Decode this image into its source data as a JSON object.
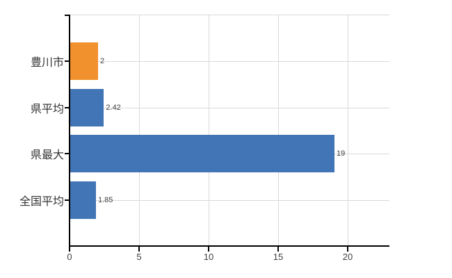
{
  "chart_data": {
    "type": "bar",
    "orientation": "horizontal",
    "title": "",
    "categories": [
      "豊川市",
      "県平均",
      "県最大",
      "全国平均"
    ],
    "values": [
      2,
      2.42,
      19,
      1.85
    ],
    "value_labels": [
      "2",
      "2.42",
      "19",
      "1.85"
    ],
    "bar_colors": [
      "#f0912d",
      "#4175b5",
      "#4175b5",
      "#4175b5"
    ],
    "x_ticks": [
      0,
      5,
      10,
      15,
      20
    ],
    "x_tick_labels": [
      "0",
      "5",
      "10",
      "15",
      "20"
    ],
    "xlim": [
      0,
      23
    ],
    "xlabel": "",
    "ylabel": "",
    "grid": true,
    "legend": false,
    "colors": {
      "background": "#ffffff",
      "grid": "#d9d9d9",
      "axis": "#000000",
      "text": "#404040",
      "bar_blue": "#4175b5",
      "bar_orange": "#f0912d"
    }
  }
}
